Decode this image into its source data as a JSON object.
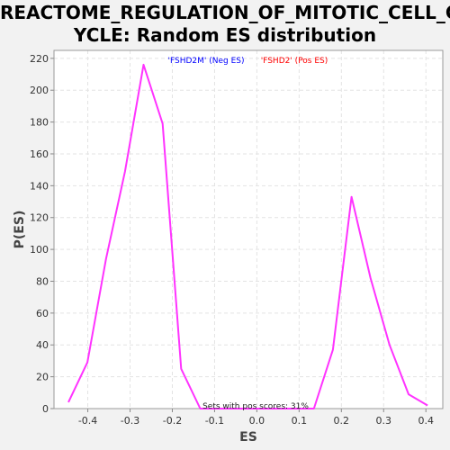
{
  "chart_data": {
    "type": "line",
    "title_lines": [
      "REACTOME_REGULATION_OF_MITOTIC_CELL_C",
      "YCLE: Random ES distribution"
    ],
    "xlabel": "ES",
    "ylabel": "P(ES)",
    "xlim": [
      -0.48,
      0.44
    ],
    "ylim": [
      0,
      225
    ],
    "xticks": [
      "-0.4",
      "-0.3",
      "-0.2",
      "-0.1",
      "0.0",
      "0.1",
      "0.2",
      "0.3",
      "0.4"
    ],
    "xtick_values": [
      -0.4,
      -0.3,
      -0.2,
      -0.1,
      0.0,
      0.1,
      0.2,
      0.3,
      0.4
    ],
    "yticks": [
      "0",
      "20",
      "40",
      "60",
      "80",
      "100",
      "120",
      "140",
      "160",
      "180",
      "200",
      "220"
    ],
    "ytick_values": [
      0,
      20,
      40,
      60,
      80,
      100,
      120,
      140,
      160,
      180,
      200,
      220
    ],
    "grid": true,
    "legend": [
      {
        "label": "'FSHD2M' (Neg ES)",
        "color": "#0000ff"
      },
      {
        "label": "'FSHD2' (Pos ES)",
        "color": "#ff0000"
      }
    ],
    "annotation": "Sets with pos scores: 31%",
    "series": [
      {
        "color": "#ff33ff",
        "x": [
          -0.446,
          -0.401,
          -0.357,
          -0.312,
          -0.268,
          -0.223,
          -0.179,
          -0.134,
          0.135,
          0.18,
          0.224,
          0.269,
          0.314,
          0.359,
          0.404
        ],
        "y": [
          4,
          29,
          94,
          149,
          216,
          179,
          25,
          0,
          0,
          37,
          133,
          82,
          40,
          9,
          2
        ]
      }
    ]
  }
}
